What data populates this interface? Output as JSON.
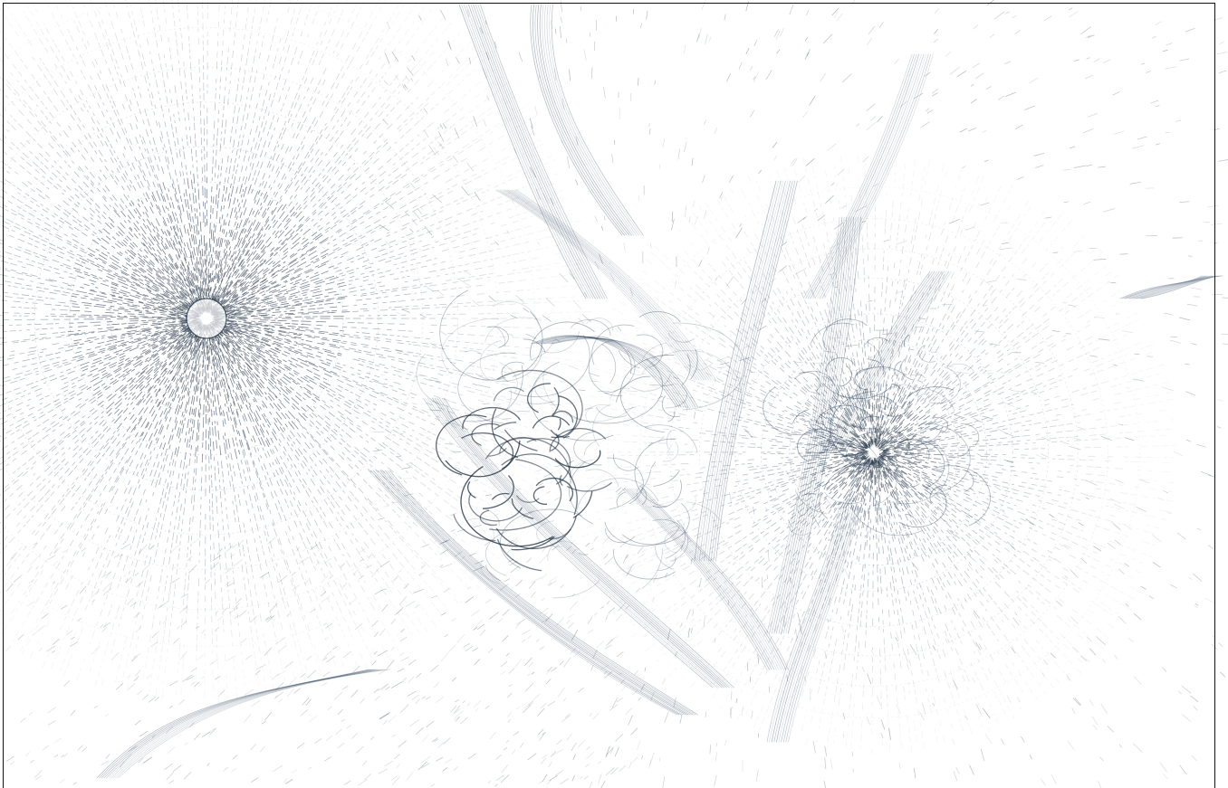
{
  "artwork": {
    "palette": {
      "background": "#ffffff",
      "ink": "#1c3550",
      "ink_dark": "#0d1f33",
      "frame": "#111111"
    },
    "vortices": [
      {
        "id": "left-spiral",
        "strength": "strong"
      },
      {
        "id": "right-spiral",
        "strength": "medium"
      },
      {
        "id": "center-tangle",
        "strength": "medium"
      }
    ]
  }
}
